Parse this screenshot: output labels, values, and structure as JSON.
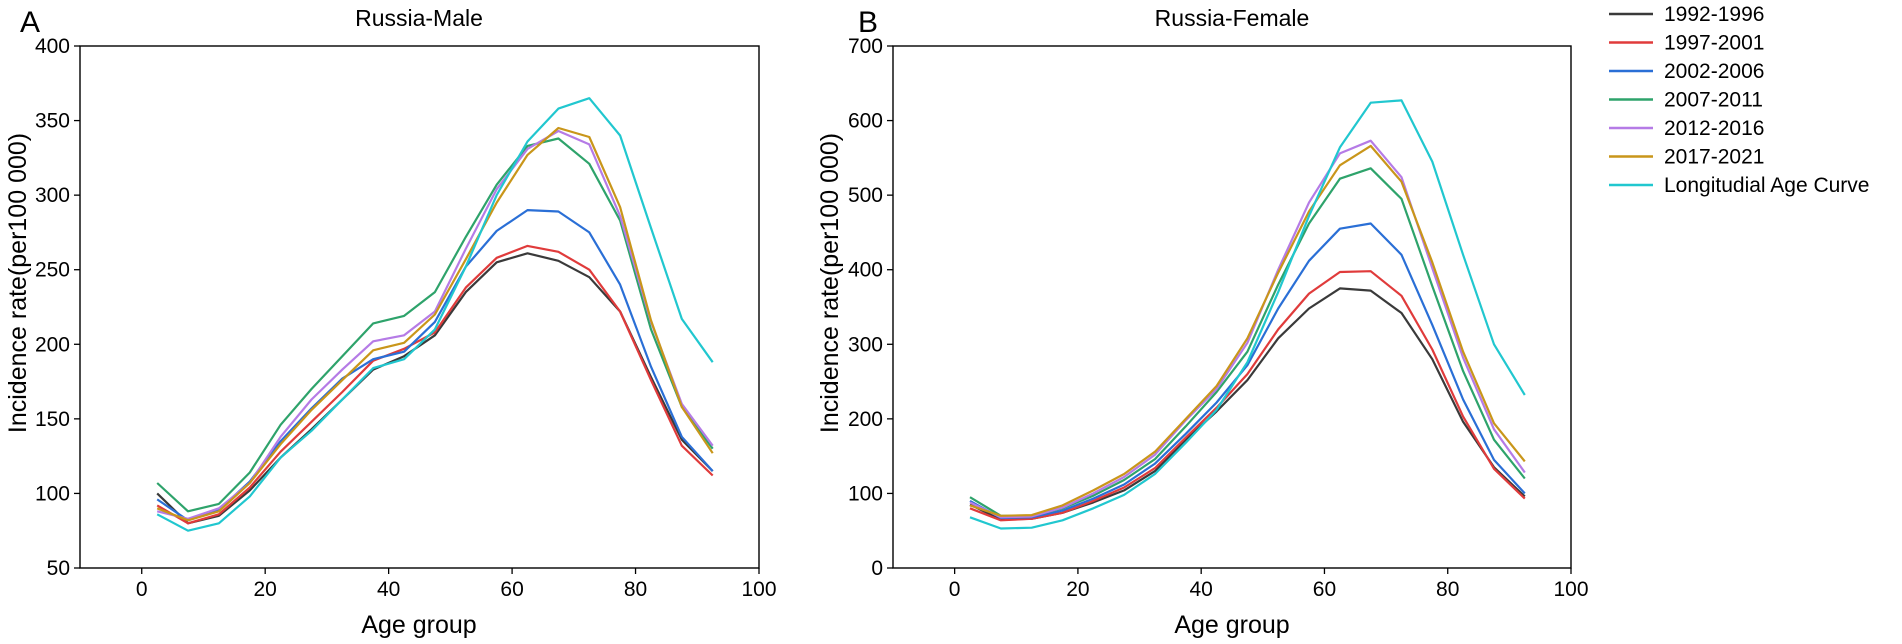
{
  "chart_data": [
    {
      "type": "line",
      "panel_label": "A",
      "title": "Russia-Male",
      "xlabel": "Age group",
      "ylabel": "Incidence rate(per100 000)",
      "xlim": [
        -10,
        100
      ],
      "ylim": [
        50,
        400
      ],
      "xticks": [
        "0",
        "20",
        "40",
        "60",
        "80",
        "100"
      ],
      "yticks": [
        "50",
        "100",
        "150",
        "200",
        "250",
        "300",
        "350",
        "400"
      ],
      "x": [
        2.5,
        7.5,
        12.5,
        17.5,
        22.5,
        27.5,
        32.5,
        37.5,
        42.5,
        47.5,
        52.5,
        57.5,
        62.5,
        67.5,
        72.5,
        77.5,
        82.5,
        87.5,
        92.5
      ],
      "series": [
        {
          "name": "1992-1996",
          "values": [
            100,
            80,
            85,
            102,
            124,
            143,
            163,
            183,
            192,
            206,
            235,
            255,
            261,
            256,
            245,
            222,
            178,
            136,
            115
          ]
        },
        {
          "name": "1997-2001",
          "values": [
            92,
            80,
            86,
            104,
            128,
            148,
            168,
            189,
            197,
            208,
            238,
            258,
            266,
            262,
            250,
            222,
            176,
            132,
            112
          ]
        },
        {
          "name": "2002-2006",
          "values": [
            96,
            82,
            89,
            108,
            135,
            157,
            177,
            190,
            195,
            215,
            252,
            276,
            290,
            289,
            275,
            240,
            185,
            138,
            115
          ]
        },
        {
          "name": "2007-2011",
          "values": [
            107,
            88,
            93,
            114,
            146,
            170,
            192,
            214,
            219,
            235,
            272,
            307,
            333,
            338,
            321,
            283,
            210,
            158,
            130
          ]
        },
        {
          "name": "2012-2016",
          "values": [
            88,
            83,
            90,
            107,
            138,
            163,
            183,
            202,
            206,
            222,
            264,
            304,
            331,
            343,
            334,
            286,
            215,
            160,
            132
          ]
        },
        {
          "name": "2017-2021",
          "values": [
            90,
            82,
            88,
            107,
            133,
            156,
            176,
            196,
            201,
            220,
            257,
            295,
            327,
            345,
            339,
            292,
            216,
            158,
            127
          ]
        },
        {
          "name": "Longitudial Age Curve",
          "values": [
            86,
            75,
            80,
            98,
            124,
            142,
            163,
            184,
            190,
            210,
            252,
            300,
            336,
            358,
            365,
            340,
            278,
            217,
            188
          ]
        }
      ]
    },
    {
      "type": "line",
      "panel_label": "B",
      "title": "Russia-Female",
      "xlabel": "Age group",
      "ylabel": "Incidence rate(per100 000)",
      "xlim": [
        -10,
        100
      ],
      "ylim": [
        0,
        700
      ],
      "xticks": [
        "0",
        "20",
        "40",
        "60",
        "80",
        "100"
      ],
      "yticks": [
        "0",
        "100",
        "200",
        "300",
        "400",
        "500",
        "600",
        "700"
      ],
      "x": [
        2.5,
        7.5,
        12.5,
        17.5,
        22.5,
        27.5,
        32.5,
        37.5,
        42.5,
        47.5,
        52.5,
        57.5,
        62.5,
        67.5,
        72.5,
        77.5,
        82.5,
        87.5,
        92.5
      ],
      "series": [
        {
          "name": "1992-1996",
          "values": [
            85,
            65,
            66,
            74,
            88,
            104,
            130,
            172,
            210,
            252,
            308,
            348,
            375,
            372,
            342,
            280,
            196,
            135,
            96
          ]
        },
        {
          "name": "1997-2001",
          "values": [
            80,
            64,
            66,
            74,
            90,
            108,
            134,
            175,
            215,
            260,
            320,
            368,
            397,
            398,
            365,
            293,
            203,
            133,
            93
          ]
        },
        {
          "name": "2002-2006",
          "values": [
            90,
            67,
            68,
            77,
            93,
            112,
            140,
            180,
            222,
            272,
            348,
            412,
            455,
            462,
            420,
            326,
            226,
            145,
            100
          ]
        },
        {
          "name": "2007-2011",
          "values": [
            95,
            70,
            70,
            80,
            97,
            118,
            146,
            190,
            236,
            290,
            380,
            462,
            522,
            536,
            495,
            378,
            264,
            172,
            120
          ]
        },
        {
          "name": "2012-2016",
          "values": [
            88,
            68,
            69,
            81,
            100,
            122,
            152,
            198,
            240,
            302,
            400,
            490,
            556,
            573,
            524,
            402,
            282,
            186,
            128
          ]
        },
        {
          "name": "2017-2021",
          "values": [
            84,
            70,
            71,
            84,
            104,
            126,
            156,
            200,
            244,
            308,
            396,
            478,
            540,
            566,
            518,
            410,
            290,
            194,
            143
          ]
        },
        {
          "name": "Longitudial Age Curve",
          "values": [
            68,
            53,
            54,
            64,
            80,
            98,
            126,
            168,
            212,
            276,
            370,
            472,
            564,
            624,
            627,
            545,
            420,
            300,
            232
          ]
        }
      ]
    }
  ],
  "legend": {
    "placement": "right",
    "entries": [
      "1992-1996",
      "1997-2001",
      "2002-2006",
      "2007-2011",
      "2012-2016",
      "2017-2021",
      "Longitudial Age Curve"
    ],
    "colors": [
      "#3a3a3a",
      "#e03b3b",
      "#2a6fd6",
      "#2ea36b",
      "#b57be6",
      "#c9961a",
      "#21c7cf"
    ]
  }
}
